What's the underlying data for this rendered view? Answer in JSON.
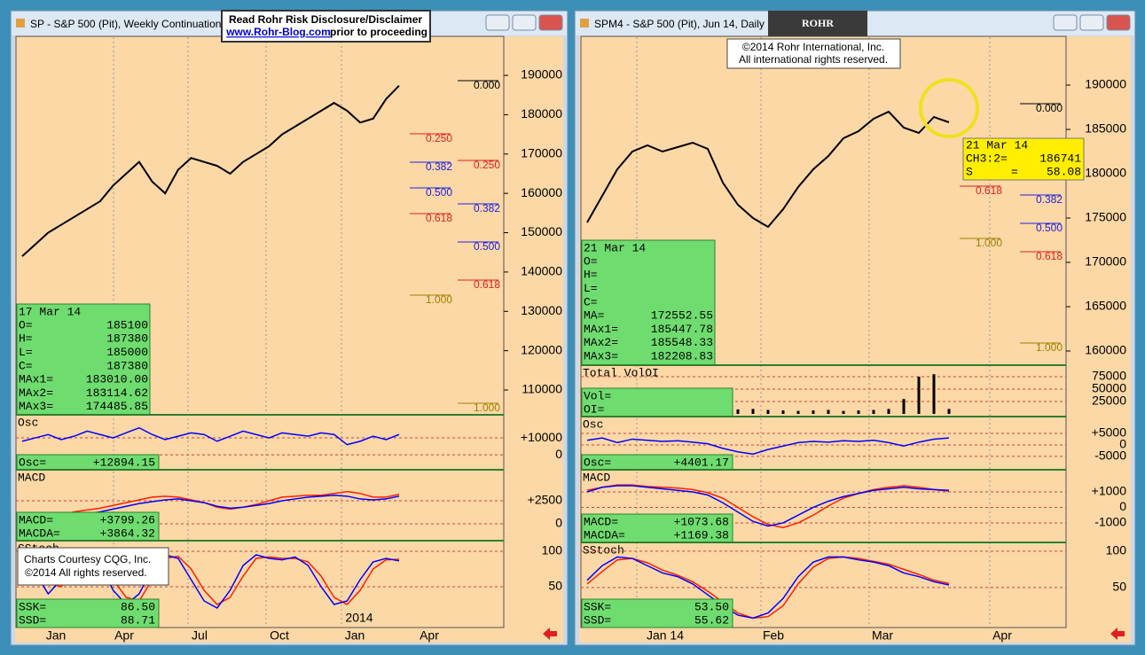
{
  "disclaimer": {
    "line1": "Read Rohr Risk Disclosure/Disclaimer",
    "link": "www.Rohr-Blog.com",
    "line2": "prior to proceeding"
  },
  "windows": [
    {
      "title": "SP - S&P 500 (Pit), Weekly Continuation",
      "price": {
        "ylim": [
          103700,
          199700
        ],
        "yticks": [
          190000,
          180000,
          170000,
          160000,
          150000,
          140000,
          130000,
          120000,
          110000
        ],
        "color": "#000000",
        "values": [
          144000,
          147000,
          150000,
          152000,
          154000,
          156000,
          158000,
          162000,
          165000,
          168000,
          163000,
          160000,
          166000,
          169000,
          168000,
          167000,
          165000,
          168000,
          170000,
          172000,
          175000,
          177000,
          179000,
          181000,
          183000,
          181000,
          178000,
          179000,
          184000,
          187380
        ]
      },
      "info": {
        "date": "17 Mar 14",
        "rows": [
          [
            "O=",
            "185100"
          ],
          [
            "H=",
            "187380"
          ],
          [
            "L=",
            "185000"
          ],
          [
            "C=",
            "187380"
          ],
          [
            "MAx1=",
            "183010.00"
          ],
          [
            "MAx2=",
            "183114.62"
          ],
          [
            "MAx3=",
            "174485.85"
          ]
        ]
      },
      "fib_labels": [
        {
          "text": "0.000",
          "color": "#000000"
        },
        {
          "text": "0.250",
          "color": "#e02020"
        },
        {
          "text": "0.250",
          "color": "#e02020"
        },
        {
          "text": "0.382",
          "color": "#2020e0"
        },
        {
          "text": "0.500",
          "color": "#2020e0"
        },
        {
          "text": "0.382",
          "color": "#2020e0"
        },
        {
          "text": "0.618",
          "color": "#e02020"
        },
        {
          "text": "0.500",
          "color": "#2020e0"
        },
        {
          "text": "0.618",
          "color": "#e02020"
        },
        {
          "text": "1.000",
          "color": "#a08000"
        },
        {
          "text": "1.000",
          "color": "#a08000"
        }
      ],
      "panes": [
        {
          "name": "Osc",
          "ylim": [
            -8900,
            23700
          ],
          "ticks": [
            {
              "value": 10000,
              "label": "+10000"
            },
            0
          ],
          "readout": [
            [
              "Osc=",
              "+12894.15"
            ]
          ],
          "series": [
            {
              "type": "line",
              "color": "#0000ff",
              "values": [
                8000,
                10000,
                12000,
                9000,
                11000,
                14000,
                12000,
                10000,
                13000,
                16000,
                12000,
                9000,
                11000,
                13000,
                12000,
                8000,
                11000,
                14000,
                12000,
                10000,
                13000,
                12000,
                11000,
                13000,
                12000,
                6000,
                8000,
                11000,
                9000,
                12000
              ]
            }
          ]
        },
        {
          "name": "MACD",
          "ylim": [
            -1830,
            5870
          ],
          "ticks": [
            {
              "value": 2500,
              "label": "+2500"
            },
            0
          ],
          "readout": [
            [
              "MACD=",
              "+3799.26"
            ],
            [
              "MACDA=",
              "+3864.32"
            ]
          ],
          "series": [
            {
              "type": "line",
              "color": "#ff2000",
              "values": [
                -600,
                0,
                600,
                1000,
                1300,
                1500,
                1700,
                2000,
                2300,
                2600,
                2900,
                3000,
                2900,
                2600,
                2300,
                1800,
                1600,
                1800,
                2100,
                2500,
                2900,
                3000,
                3100,
                3100,
                3300,
                3500,
                3300,
                2900,
                2900,
                3200
              ]
            },
            {
              "type": "line",
              "color": "#0000ff",
              "values": [
                -800,
                -300,
                200,
                600,
                900,
                1100,
                1300,
                1600,
                1900,
                2200,
                2400,
                2600,
                2700,
                2500,
                2300,
                1900,
                1700,
                1800,
                2000,
                2200,
                2500,
                2700,
                2900,
                3000,
                3100,
                3000,
                2700,
                2600,
                2700,
                3000
              ]
            }
          ]
        },
        {
          "name": "SStoch",
          "ylim": [
            -7.5,
            115
          ],
          "ticks": [
            100,
            50
          ],
          "readout": [
            [
              "SSK=",
              "86.50"
            ],
            [
              "SSD=",
              "88.71"
            ]
          ],
          "series": [
            {
              "type": "line",
              "color": "#ff2000",
              "values": [
                88,
                80,
                55,
                50,
                75,
                92,
                88,
                60,
                35,
                30,
                60,
                90,
                93,
                75,
                45,
                25,
                35,
                65,
                90,
                92,
                90,
                90,
                85,
                65,
                35,
                25,
                45,
                75,
                88,
                88.7
              ]
            },
            {
              "type": "line",
              "color": "#0000ff",
              "values": [
                90,
                70,
                40,
                60,
                85,
                95,
                80,
                45,
                25,
                40,
                75,
                95,
                90,
                60,
                30,
                20,
                45,
                80,
                95,
                90,
                88,
                92,
                80,
                50,
                25,
                30,
                60,
                85,
                90,
                86.5
              ]
            }
          ]
        }
      ],
      "time_labels": [
        "Jan",
        "Apr",
        "Jul",
        "Oct",
        "Jan",
        "Apr"
      ],
      "year_label": "2014",
      "credits": [
        "Charts Courtesy CQG, Inc.",
        "©2014 All rights reserved."
      ]
    },
    {
      "title": "SPM4 - S&P 500 (Pit), Jun 14, Daily",
      "logo": "ROHR",
      "copyright": [
        "©2014 Rohr International, Inc.",
        "All international rights reserved."
      ],
      "price": {
        "ylim": [
          158400,
          195400
        ],
        "yticks": [
          190000,
          185000,
          180000,
          175000,
          170000,
          165000,
          160000
        ],
        "color": "#000000",
        "values": [
          174500,
          177500,
          180500,
          182500,
          183200,
          182500,
          183000,
          183500,
          182800,
          179000,
          176500,
          175000,
          174000,
          176000,
          178500,
          180500,
          182000,
          184000,
          184800,
          186200,
          187000,
          185200,
          184600,
          186400,
          185800
        ]
      },
      "cursor": {
        "date": "21 Mar 14",
        "rows": [
          [
            "CH3:2=",
            "186741"
          ],
          [
            "S",
            "=",
            "58.08"
          ]
        ]
      },
      "info": {
        "date": "21 Mar 14",
        "rows": [
          [
            "O="
          ],
          [
            "H="
          ],
          [
            "L="
          ],
          [
            "C="
          ],
          [
            "MA=",
            "172552.55"
          ],
          [
            "MAx1=",
            "185447.78"
          ],
          [
            "MAx2=",
            "185548.33"
          ],
          [
            "MAx3=",
            "182208.83"
          ]
        ]
      },
      "fib_labels": [
        {
          "text": "0.000",
          "color": "#000000"
        },
        {
          "text": "0.618",
          "color": "#e02020"
        },
        {
          "text": "0.382",
          "color": "#2020e0"
        },
        {
          "text": "0.500",
          "color": "#2020e0"
        },
        {
          "text": "1.000",
          "color": "#a08000"
        },
        {
          "text": "0.618",
          "color": "#e02020"
        },
        {
          "text": "1.000",
          "color": "#a08000"
        }
      ],
      "panes": [
        {
          "name": "Total VolOI",
          "ylim": [
            -5400,
            98200
          ],
          "ticks": [
            75000,
            50000,
            25000
          ],
          "readout": [
            [
              "Vol="
            ],
            [
              "OI="
            ]
          ],
          "series": [
            {
              "type": "bar",
              "color": "#000000",
              "values": [
                3000,
                4000,
                5000,
                4000,
                3000,
                5000,
                6000,
                5000,
                4000,
                8000,
                9000,
                10000,
                8000,
                7000,
                6000,
                7000,
                8000,
                6000,
                7000,
                8000,
                10000,
                30000,
                75000,
                80000,
                10000
              ]
            }
          ]
        },
        {
          "name": "Osc",
          "ylim": [
            -10800,
            12300
          ],
          "ticks": [
            {
              "value": 5000,
              "label": "+5000"
            },
            0,
            -5000
          ],
          "readout": [
            [
              "Osc=",
              "+4401.17"
            ]
          ],
          "series": [
            {
              "type": "line",
              "color": "#0000ff",
              "values": [
                2000,
                3000,
                1000,
                2500,
                2000,
                1500,
                1800,
                1200,
                500,
                -1500,
                -3000,
                -4000,
                -2000,
                -500,
                1000,
                1500,
                1200,
                1800,
                1500,
                2000,
                1000,
                -500,
                1200,
                2500,
                3000
              ]
            }
          ]
        },
        {
          "name": "MACD",
          "ylim": [
            -2260,
            2430
          ],
          "ticks": [
            {
              "value": 1000,
              "label": "+1000"
            },
            0,
            -1000
          ],
          "readout": [
            [
              "MACD=",
              "+1073.68"
            ],
            [
              "MACDA=",
              "+1169.38"
            ]
          ],
          "series": [
            {
              "type": "line",
              "color": "#ff2000",
              "values": [
                1100,
                1300,
                1450,
                1450,
                1350,
                1300,
                1250,
                1150,
                950,
                600,
                0,
                -600,
                -1100,
                -1300,
                -1000,
                -500,
                100,
                600,
                900,
                1150,
                1300,
                1400,
                1300,
                1150,
                1050
              ]
            },
            {
              "type": "line",
              "color": "#0000ff",
              "values": [
                1000,
                1300,
                1400,
                1400,
                1300,
                1200,
                1100,
                1000,
                800,
                300,
                -300,
                -900,
                -1200,
                -1000,
                -500,
                0,
                400,
                700,
                900,
                1100,
                1200,
                1300,
                1200,
                1150,
                1100
              ]
            }
          ]
        },
        {
          "name": "SStoch",
          "ylim": [
            -5,
            112
          ],
          "ticks": [
            100,
            50
          ],
          "readout": [
            [
              "SSK=",
              "53.50"
            ],
            [
              "SSD=",
              "55.62"
            ]
          ],
          "series": [
            {
              "type": "line",
              "color": "#ff2000",
              "values": [
                55,
                72,
                88,
                90,
                84,
                74,
                67,
                58,
                45,
                30,
                15,
                8,
                10,
                25,
                55,
                78,
                90,
                92,
                90,
                86,
                82,
                75,
                68,
                60,
                55.6
              ]
            },
            {
              "type": "line",
              "color": "#0000ff",
              "values": [
                60,
                80,
                92,
                90,
                80,
                70,
                65,
                55,
                40,
                25,
                12,
                8,
                15,
                35,
                65,
                85,
                92,
                92,
                88,
                85,
                80,
                70,
                65,
                58,
                53.5
              ]
            }
          ]
        }
      ],
      "time_labels": [
        "Jan 14",
        "Feb",
        "Mar",
        "Apr"
      ]
    }
  ]
}
